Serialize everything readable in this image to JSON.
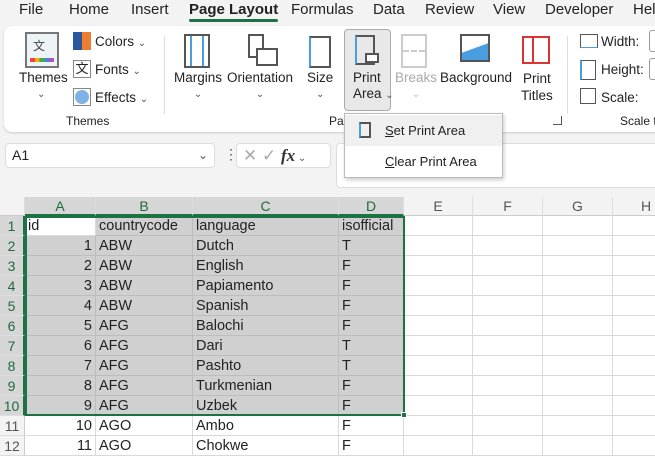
{
  "tabs": [
    "File",
    "Home",
    "Insert",
    "Page Layout",
    "Formulas",
    "Data",
    "Review",
    "View",
    "Developer",
    "Hel"
  ],
  "active_tab": "Page Layout",
  "ribbon": {
    "themes": "Themes",
    "colors": "Colors",
    "fonts": "Fonts",
    "effects": "Effects",
    "themes_group": "Themes",
    "margins": "Margins",
    "orientation": "Orientation",
    "size": "Size",
    "print_area_1": "Print",
    "print_area_2": "Area",
    "breaks": "Breaks",
    "background": "Background",
    "print_titles_1": "Print",
    "print_titles_2": "Titles",
    "page_setup_group": "Pag",
    "width": "Width:",
    "height": "Height:",
    "scale": "Scale:",
    "scale_group": "Scale to"
  },
  "menu": {
    "set_u": "S",
    "set_rest": "et Print Area",
    "clear_u": "C",
    "clear_rest": "lear Print Area"
  },
  "formula_bar": {
    "name_box": "A1",
    "fx": "fx"
  },
  "columns": [
    "A",
    "B",
    "C",
    "D",
    "E",
    "F",
    "G",
    "H"
  ],
  "rows": [
    [
      "1",
      "id",
      "countrycode",
      "language",
      "isofficial"
    ],
    [
      "2",
      "1",
      "ABW",
      "Dutch",
      "T"
    ],
    [
      "3",
      "2",
      "ABW",
      "English",
      "F"
    ],
    [
      "4",
      "3",
      "ABW",
      "Papiamento",
      "F"
    ],
    [
      "5",
      "4",
      "ABW",
      "Spanish",
      "F"
    ],
    [
      "6",
      "5",
      "AFG",
      "Balochi",
      "F"
    ],
    [
      "7",
      "6",
      "AFG",
      "Dari",
      "T"
    ],
    [
      "8",
      "7",
      "AFG",
      "Pashto",
      "T"
    ],
    [
      "9",
      "8",
      "AFG",
      "Turkmenian",
      "F"
    ],
    [
      "10",
      "9",
      "AFG",
      "Uzbek",
      "F"
    ],
    [
      "11",
      "10",
      "AGO",
      "Ambo",
      "F"
    ],
    [
      "12",
      "11",
      "AGO",
      "Chokwe",
      "F"
    ]
  ],
  "colors": {
    "accent": "#1e7145",
    "selection_fill": "#d0d0d0"
  }
}
